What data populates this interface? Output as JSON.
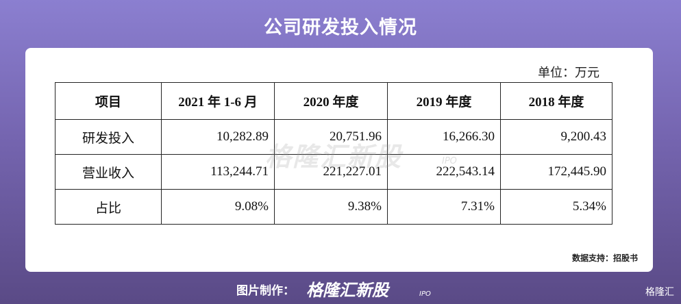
{
  "header": {
    "title": "公司研发投入情况"
  },
  "unit": "单位：万元",
  "table": {
    "columns": [
      "项目",
      "2021 年 1-6 月",
      "2020 年度",
      "2019 年度",
      "2018 年度"
    ],
    "rows": [
      [
        "研发投入",
        "10,282.89",
        "20,751.96",
        "16,266.30",
        "9,200.43"
      ],
      [
        "营业收入",
        "113,244.71",
        "221,227.01",
        "222,543.14",
        "172,445.90"
      ],
      [
        "占比",
        "9.08%",
        "9.38%",
        "7.31%",
        "5.34%"
      ]
    ]
  },
  "watermark": {
    "logo": "格隆汇新股",
    "tag": "IPO"
  },
  "source": "数据支持：招股书",
  "footer": {
    "credit": "图片制作：",
    "logo": "格隆汇新股",
    "tag": "IPO",
    "brand": "格隆汇"
  }
}
